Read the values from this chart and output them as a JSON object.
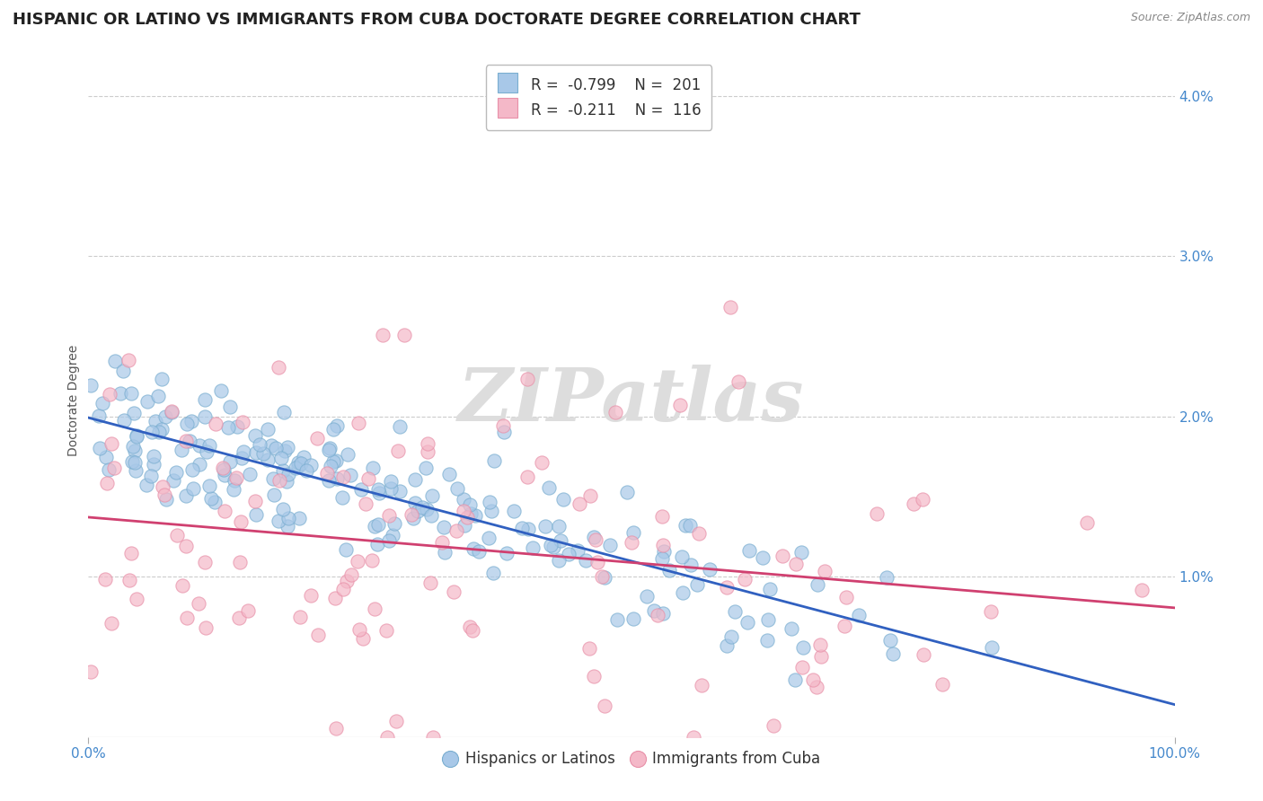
{
  "title": "HISPANIC OR LATINO VS IMMIGRANTS FROM CUBA DOCTORATE DEGREE CORRELATION CHART",
  "source": "Source: ZipAtlas.com",
  "ylabel": "Doctorate Degree",
  "xlim": [
    0,
    100
  ],
  "ylim": [
    0,
    4.2
  ],
  "ytick_values": [
    1.0,
    2.0,
    3.0,
    4.0
  ],
  "legend1_R": "-0.799",
  "legend1_N": "201",
  "legend2_R": "-0.211",
  "legend2_N": "116",
  "legend1_label": "Hispanics or Latinos",
  "legend2_label": "Immigrants from Cuba",
  "color_blue": "#a8c8e8",
  "color_pink": "#f4b8c8",
  "color_blue_edge": "#7aaed0",
  "color_pink_edge": "#e890a8",
  "color_blue_line": "#3060c0",
  "color_pink_line": "#d04070",
  "watermark": "ZIPatlas",
  "background_color": "#ffffff",
  "seed": 12345,
  "title_fontsize": 13,
  "axis_label_fontsize": 10,
  "tick_fontsize": 11,
  "legend_fontsize": 12
}
